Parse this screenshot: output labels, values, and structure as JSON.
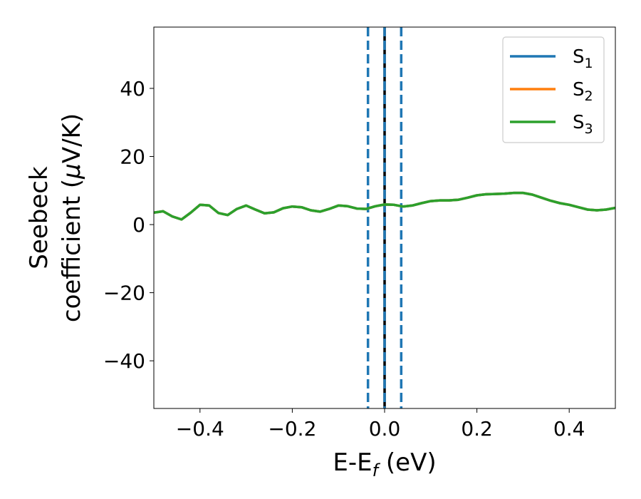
{
  "chart_data": {
    "type": "line",
    "xlabel": "E-E",
    "xlabel_sub": "f",
    "xlabel_unit": " (eV)",
    "ylabel_line1": "Seebeck",
    "ylabel_line2_pre": "coefficient  (",
    "ylabel_mu": "μ",
    "ylabel_line2_post": "V/K)",
    "xlim": [
      -0.5,
      0.5
    ],
    "ylim": [
      -54,
      58
    ],
    "xticks": [
      -0.4,
      -0.2,
      0.0,
      0.2,
      0.4
    ],
    "xtick_labels": [
      "−0.4",
      "−0.2",
      "0.0",
      "0.2",
      "0.4"
    ],
    "yticks": [
      -40,
      -20,
      0,
      20,
      40
    ],
    "ytick_labels": [
      "−40",
      "−20",
      "0",
      "20",
      "40"
    ],
    "grid": false,
    "legend_position": "top-right",
    "vlines": [
      {
        "x": -0.036,
        "style": "dashed",
        "color": "#1f77b4"
      },
      {
        "x": 0.0,
        "style": "solid",
        "color": "#000000"
      },
      {
        "x": 0.0,
        "style": "dashed",
        "color": "#1f77b4"
      },
      {
        "x": 0.036,
        "style": "dashed",
        "color": "#1f77b4"
      }
    ],
    "x": [
      -0.5,
      -0.48,
      -0.46,
      -0.44,
      -0.42,
      -0.4,
      -0.38,
      -0.36,
      -0.34,
      -0.32,
      -0.3,
      -0.28,
      -0.26,
      -0.24,
      -0.22,
      -0.2,
      -0.18,
      -0.16,
      -0.14,
      -0.12,
      -0.1,
      -0.08,
      -0.06,
      -0.04,
      -0.02,
      0.0,
      0.02,
      0.04,
      0.06,
      0.08,
      0.1,
      0.12,
      0.14,
      0.16,
      0.18,
      0.2,
      0.22,
      0.24,
      0.26,
      0.28,
      0.3,
      0.32,
      0.34,
      0.36,
      0.38,
      0.4,
      0.42,
      0.44,
      0.46,
      0.48,
      0.5
    ],
    "series": [
      {
        "name": "S",
        "sub": "1",
        "color": "#1f77b4",
        "values": [
          3.5,
          3.9,
          2.4,
          1.5,
          3.5,
          5.8,
          5.6,
          3.4,
          2.8,
          4.6,
          5.6,
          4.4,
          3.3,
          3.6,
          4.8,
          5.3,
          5.1,
          4.2,
          3.8,
          4.6,
          5.6,
          5.4,
          4.7,
          4.6,
          5.4,
          5.9,
          5.8,
          5.3,
          5.6,
          6.3,
          6.9,
          7.1,
          7.1,
          7.3,
          7.9,
          8.6,
          8.9,
          9.0,
          9.1,
          9.3,
          9.3,
          8.8,
          7.9,
          7.0,
          6.3,
          5.8,
          5.1,
          4.4,
          4.2,
          4.4,
          4.9
        ]
      },
      {
        "name": "S",
        "sub": "2",
        "color": "#ff7f0e",
        "values": [
          3.5,
          3.9,
          2.4,
          1.5,
          3.5,
          5.8,
          5.6,
          3.4,
          2.8,
          4.6,
          5.6,
          4.4,
          3.3,
          3.6,
          4.8,
          5.3,
          5.1,
          4.2,
          3.8,
          4.6,
          5.6,
          5.4,
          4.7,
          4.6,
          5.4,
          5.9,
          5.8,
          5.3,
          5.6,
          6.3,
          6.9,
          7.1,
          7.1,
          7.3,
          7.9,
          8.6,
          8.9,
          9.0,
          9.1,
          9.3,
          9.3,
          8.8,
          7.9,
          7.0,
          6.3,
          5.8,
          5.1,
          4.4,
          4.2,
          4.4,
          4.9
        ]
      },
      {
        "name": "S",
        "sub": "3",
        "color": "#2ca02c",
        "values": [
          3.5,
          3.9,
          2.4,
          1.5,
          3.5,
          5.8,
          5.6,
          3.4,
          2.8,
          4.6,
          5.6,
          4.4,
          3.3,
          3.6,
          4.8,
          5.3,
          5.1,
          4.2,
          3.8,
          4.6,
          5.6,
          5.4,
          4.7,
          4.6,
          5.4,
          5.9,
          5.8,
          5.3,
          5.6,
          6.3,
          6.9,
          7.1,
          7.1,
          7.3,
          7.9,
          8.6,
          8.9,
          9.0,
          9.1,
          9.3,
          9.3,
          8.8,
          7.9,
          7.0,
          6.3,
          5.8,
          5.1,
          4.4,
          4.2,
          4.4,
          4.9
        ]
      }
    ]
  }
}
